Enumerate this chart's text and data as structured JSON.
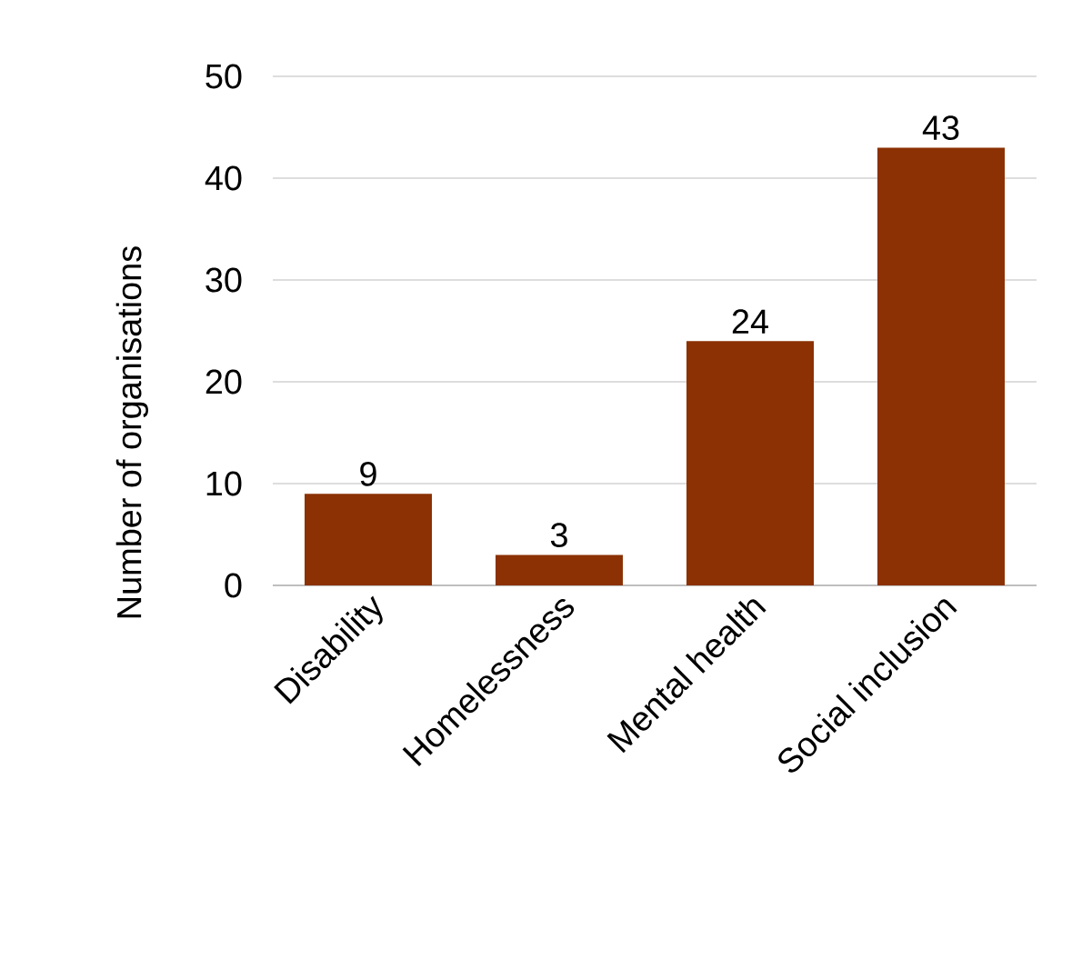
{
  "chart_data": {
    "type": "bar",
    "ylabel": "Number of organisations",
    "categories": [
      "Disability",
      "Homelessness",
      "Mental health",
      "Social inclusion"
    ],
    "values": [
      9,
      3,
      24,
      43
    ],
    "color": "#8b3103",
    "ylim": [
      0,
      50
    ],
    "yticks": [
      0,
      10,
      20,
      30,
      40,
      50
    ],
    "grid": "y",
    "data_labels": true
  }
}
